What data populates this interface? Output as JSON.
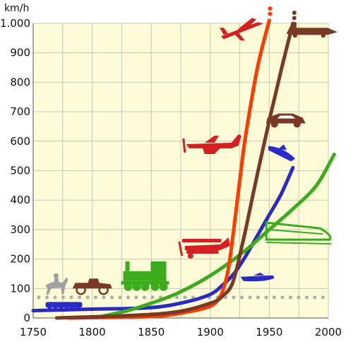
{
  "chart_data": {
    "type": "line",
    "title": "",
    "xlabel": "",
    "ylabel": "km/h",
    "xlim": [
      1750,
      2000
    ],
    "ylim": [
      0,
      1000
    ],
    "x_ticks": [
      1750,
      1800,
      1850,
      1900,
      1950,
      2000
    ],
    "x_tick_labels": [
      "1750",
      "1800",
      "1850",
      "1900",
      "1950",
      "2000"
    ],
    "y_ticks": [
      0,
      100,
      200,
      300,
      400,
      500,
      600,
      700,
      800,
      900,
      1000
    ],
    "y_tick_labels": [
      "0",
      "100",
      "200",
      "300",
      "400",
      "500",
      "600",
      "700",
      "800",
      "900",
      "1.000"
    ],
    "grid": true,
    "background": "#fdfbd8",
    "reference_line": {
      "y": 70,
      "color": "#b0b0a4",
      "style": "dotted"
    },
    "series": [
      {
        "color": "#2a2ac8",
        "x": [
          1750,
          1800,
          1850,
          1880,
          1900,
          1910,
          1920,
          1930,
          1940,
          1950,
          1960,
          1970
        ],
        "y": [
          25,
          30,
          35,
          55,
          80,
          110,
          150,
          210,
          280,
          350,
          420,
          510
        ]
      },
      {
        "color": "#3cac1c",
        "x": [
          1808,
          1830,
          1850,
          1870,
          1890,
          1910,
          1930,
          1950,
          1970,
          1990,
          2005
        ],
        "y": [
          5,
          25,
          50,
          80,
          120,
          170,
          230,
          300,
          370,
          450,
          555
        ]
      },
      {
        "color": "#ff3c00",
        "x": [
          1780,
          1850,
          1880,
          1900,
          1908,
          1912,
          1915,
          1918,
          1922,
          1926,
          1930,
          1940,
          1950
        ],
        "y": [
          0,
          5,
          20,
          40,
          70,
          110,
          160,
          240,
          370,
          500,
          620,
          850,
          1010
        ]
      },
      {
        "color": "#7a3826",
        "x": [
          1770,
          1860,
          1900,
          1912,
          1918,
          1922,
          1926,
          1930,
          1940,
          1950,
          1960,
          1970
        ],
        "y": [
          0,
          15,
          50,
          80,
          110,
          160,
          230,
          300,
          490,
          670,
          840,
          1000
        ]
      }
    ],
    "icons": [
      {
        "name": "wagon-train-icon",
        "x": 1776,
        "y": 40,
        "color": "#2a2ac8"
      },
      {
        "name": "horse-rider-icon",
        "x": 1770,
        "y": 105,
        "color": "#a0a0a0"
      },
      {
        "name": "vintage-car-icon",
        "x": 1800,
        "y": 105,
        "color": "#7a3826"
      },
      {
        "name": "steam-locomotive-icon",
        "x": 1846,
        "y": 130,
        "color": "#3cac1c"
      },
      {
        "name": "motorboat-icon",
        "x": 1940,
        "y": 135,
        "color": "#2a2ac8"
      },
      {
        "name": "high-speed-train-icon",
        "x": 1975,
        "y": 290,
        "color": "#3cac1c"
      },
      {
        "name": "biplane-icon",
        "x": 1894,
        "y": 235,
        "color": "#d42020"
      },
      {
        "name": "propeller-plane-icon",
        "x": 1900,
        "y": 590,
        "color": "#d42020"
      },
      {
        "name": "jet-fighter-icon",
        "x": 1927,
        "y": 980,
        "color": "#d42020"
      },
      {
        "name": "speedboat-icon",
        "x": 1960,
        "y": 560,
        "color": "#2a2ac8"
      },
      {
        "name": "sports-car-icon",
        "x": 1964,
        "y": 670,
        "color": "#7a3826"
      },
      {
        "name": "rocket-car-icon",
        "x": 1985,
        "y": 975,
        "color": "#7a3826"
      }
    ]
  }
}
